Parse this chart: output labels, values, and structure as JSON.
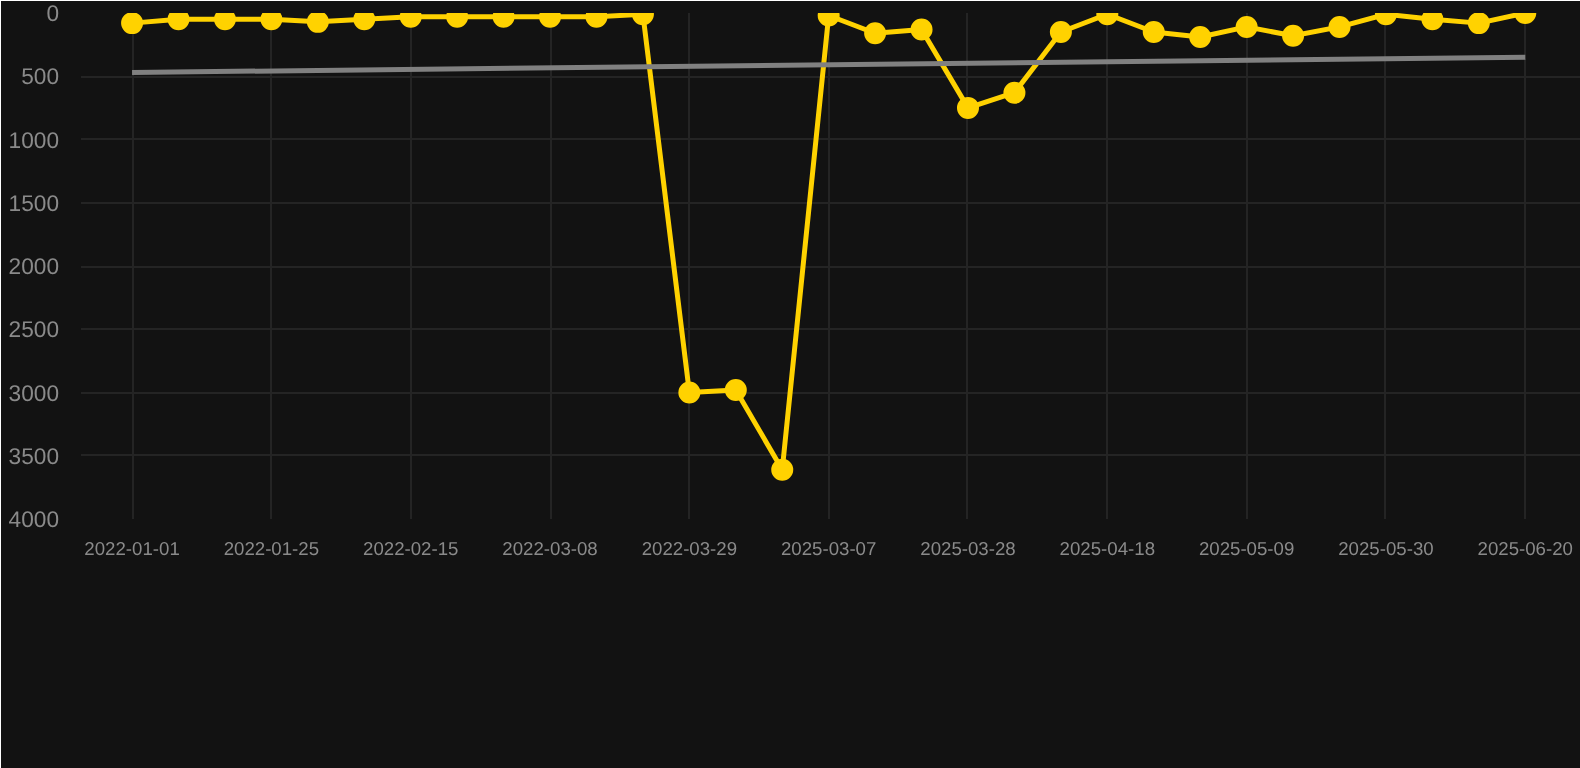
{
  "chart_data": {
    "type": "line",
    "categories": [
      "2022-01-01",
      null,
      null,
      "2022-01-25",
      null,
      null,
      "2022-02-15",
      null,
      null,
      "2022-03-08",
      null,
      null,
      "2022-03-29",
      null,
      null,
      "2025-03-07",
      null,
      null,
      "2025-03-28",
      null,
      null,
      "2025-04-18",
      null,
      null,
      "2025-05-09",
      null,
      null,
      "2025-05-30",
      null,
      null,
      "2025-06-20"
    ],
    "series": [
      {
        "color": "#ffd200",
        "values": [
          80,
          50,
          50,
          50,
          70,
          50,
          30,
          30,
          30,
          30,
          30,
          10,
          3000,
          2980,
          3610,
          20,
          160,
          130,
          750,
          630,
          150,
          10,
          150,
          190,
          110,
          180,
          110,
          10,
          50,
          80,
          0
        ]
      },
      {
        "color": "#808080",
        "marker": "none",
        "values": [
          470,
          null,
          null,
          null,
          null,
          null,
          null,
          null,
          null,
          null,
          null,
          null,
          null,
          null,
          null,
          null,
          null,
          null,
          null,
          null,
          null,
          null,
          null,
          null,
          null,
          null,
          null,
          null,
          null,
          null,
          350
        ]
      }
    ],
    "ylim": [
      4000,
      0
    ],
    "yticks": [
      0,
      500,
      1000,
      1500,
      2000,
      2500,
      3000,
      3500,
      4000
    ],
    "grid": true,
    "marker": "circle"
  }
}
